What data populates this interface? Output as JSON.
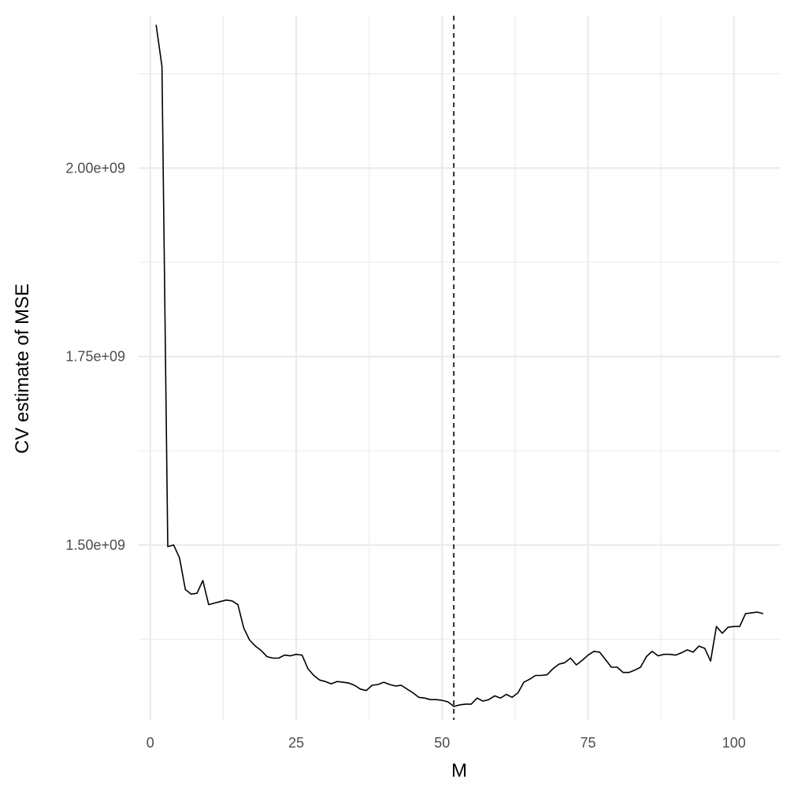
{
  "chart_data": {
    "type": "line",
    "title": "",
    "xlabel": "M",
    "ylabel": "CV estimate of MSE",
    "xlim": [
      -2,
      108
    ],
    "ylim": [
      1268000000,
      2202000000
    ],
    "x_ticks": [
      0,
      25,
      50,
      75,
      100
    ],
    "x_tick_labels": [
      "0",
      "25",
      "50",
      "75",
      "100"
    ],
    "x_minor_ticks": [
      12.5,
      37.5,
      62.5,
      87.5
    ],
    "y_ticks": [
      1500000000,
      1750000000,
      2000000000
    ],
    "y_tick_labels": [
      "1.50e+09",
      "1.75e+09",
      "2.00e+09"
    ],
    "y_minor_ticks": [
      1375000000,
      1625000000,
      1875000000,
      2125000000
    ],
    "grid": true,
    "vline": {
      "x": 52,
      "style": "dashed"
    },
    "colors": {
      "line": "#000000",
      "grid": "#ebebeb",
      "tick_text": "#4d4d4d"
    },
    "series": [
      {
        "x": [
          1,
          2,
          3,
          4,
          5,
          6,
          7,
          8,
          9,
          10,
          11,
          12,
          13,
          14,
          15,
          16,
          17,
          18,
          19,
          20,
          21,
          22,
          23,
          24,
          25,
          26,
          27,
          28,
          29,
          30,
          31,
          32,
          33,
          34,
          35,
          36,
          37,
          38,
          39,
          40,
          41,
          42,
          43,
          44,
          45,
          46,
          47,
          48,
          49,
          50,
          51,
          52,
          53,
          54,
          55,
          56,
          57,
          58,
          59,
          60,
          61,
          62,
          63,
          64,
          65,
          66,
          67,
          68,
          69,
          70,
          71,
          72,
          73,
          74,
          75,
          76,
          77,
          78,
          79,
          80,
          81,
          82,
          83,
          84,
          85,
          86,
          87,
          88,
          89,
          90,
          91,
          92,
          93,
          94,
          95,
          96,
          97,
          98,
          99,
          100,
          101,
          102,
          103,
          104,
          105
        ],
        "values": [
          2190000000,
          2135000000,
          1498000000,
          1500000000,
          1483000000,
          1441000000,
          1435000000,
          1436000000,
          1453000000,
          1421000000,
          1423000000,
          1425000000,
          1427000000,
          1426000000,
          1421000000,
          1390000000,
          1374000000,
          1366000000,
          1360000000,
          1352000000,
          1350000000,
          1350000000,
          1354000000,
          1353000000,
          1355000000,
          1354000000,
          1336000000,
          1327000000,
          1321000000,
          1319000000,
          1316000000,
          1319000000,
          1318000000,
          1317000000,
          1314000000,
          1309000000,
          1307000000,
          1314000000,
          1315000000,
          1318000000,
          1315000000,
          1313000000,
          1314000000,
          1309000000,
          1304000000,
          1298000000,
          1297000000,
          1295000000,
          1295000000,
          1294000000,
          1292000000,
          1286000000,
          1288000000,
          1289000000,
          1289000000,
          1297000000,
          1293000000,
          1295000000,
          1300000000,
          1297000000,
          1302000000,
          1298000000,
          1304000000,
          1318000000,
          1322000000,
          1327000000,
          1327000000,
          1328000000,
          1336000000,
          1342000000,
          1344000000,
          1350000000,
          1341000000,
          1347000000,
          1354000000,
          1359000000,
          1358000000,
          1348000000,
          1338000000,
          1338000000,
          1331000000,
          1331000000,
          1334000000,
          1338000000,
          1352000000,
          1359000000,
          1353000000,
          1355000000,
          1355000000,
          1354000000,
          1357000000,
          1361000000,
          1358000000,
          1366000000,
          1363000000,
          1346000000,
          1392000000,
          1383000000,
          1391000000,
          1392000000,
          1392000000,
          1409000000,
          1410000000,
          1411000000,
          1409000000
        ]
      }
    ]
  }
}
